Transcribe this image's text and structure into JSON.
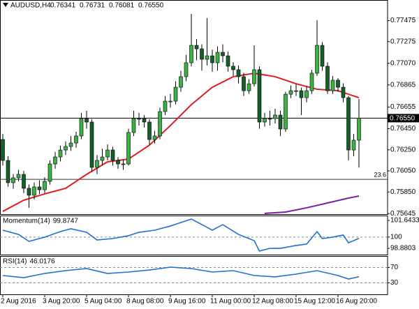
{
  "chart_data": [
    {
      "type": "candlestick",
      "title": "AUDUSD,H4",
      "header": [
        0.76341,
        0.76731,
        0.76081,
        {
          "value": 0.7655,
          "label": "0.76550"
        }
      ],
      "up_color": "#3cb043",
      "down_color": "#14602a",
      "categories": [
        "2 Aug 2016",
        null,
        null,
        null,
        null,
        null,
        null,
        null,
        "3 Aug 20:00",
        null,
        null,
        null,
        null,
        null,
        null,
        null,
        "5 Aug 04:00",
        null,
        null,
        null,
        null,
        null,
        null,
        null,
        "8 Aug 08:00",
        null,
        null,
        null,
        null,
        null,
        null,
        null,
        "9 Aug 16:00",
        null,
        null,
        null,
        null,
        null,
        null,
        null,
        "11 Aug 00:00",
        null,
        null,
        null,
        null,
        null,
        null,
        null,
        "12 Aug 08:00",
        null,
        null,
        null,
        null,
        null,
        null,
        null,
        "15 Aug 12:00",
        null,
        null,
        null,
        null,
        null,
        null,
        null,
        "16 Aug 20:00",
        null,
        null,
        null,
        null
      ],
      "open": [
        0.76348,
        0.76149,
        0.75938,
        0.75984,
        0.76017,
        0.75885,
        0.75819,
        0.75898,
        0.75871,
        0.75951,
        0.76116,
        0.76182,
        0.76248,
        0.76281,
        0.76314,
        0.76381,
        0.76546,
        0.76513,
        0.76083,
        0.76149,
        0.76182,
        0.76248,
        0.76149,
        0.76116,
        0.76116,
        0.76414,
        0.76546,
        0.76546,
        0.76513,
        0.76347,
        0.76381,
        0.76612,
        0.76711,
        0.76711,
        0.76843,
        0.76943,
        0.77075,
        0.7724,
        0.77207,
        0.77108,
        0.77141,
        0.77075,
        0.77174,
        0.77141,
        0.77042,
        0.77009,
        0.76943,
        0.7681,
        0.76876,
        0.77009,
        0.76513,
        0.76546,
        0.76546,
        0.76579,
        0.76447,
        0.76777,
        0.7681,
        0.7681,
        0.76744,
        0.7681,
        0.76976,
        0.7724,
        0.77042,
        0.7681,
        0.7691,
        0.76843,
        0.76744,
        0.76248,
        0.76341
      ],
      "high": [
        0.764,
        0.7619,
        0.7602,
        0.7606,
        0.7605,
        0.7592,
        0.7594,
        0.7596,
        0.7599,
        0.7615,
        0.7623,
        0.7629,
        0.7633,
        0.7638,
        0.7642,
        0.766,
        0.7662,
        0.7654,
        0.762,
        0.7626,
        0.763,
        0.7628,
        0.7618,
        0.7616,
        0.7645,
        0.7662,
        0.766,
        0.7658,
        0.7654,
        0.7643,
        0.7665,
        0.7676,
        0.7678,
        0.769,
        0.77,
        0.7715,
        0.77538,
        0.773,
        0.7725,
        0.775,
        0.772,
        0.7723,
        0.7725,
        0.7718,
        0.7708,
        0.7705,
        0.7698,
        0.7692,
        0.7724,
        0.7704,
        0.766,
        0.7662,
        0.7664,
        0.7662,
        0.768,
        0.7686,
        0.7687,
        0.7684,
        0.7685,
        0.7701,
        0.7748,
        0.7727,
        0.7708,
        0.7695,
        0.7693,
        0.7688,
        0.7676,
        0.764,
        0.76731
      ],
      "low": [
        0.761,
        0.759,
        0.7588,
        0.7595,
        0.7584,
        0.757,
        0.7578,
        0.7583,
        0.7584,
        0.7592,
        0.7607,
        0.7614,
        0.762,
        0.7624,
        0.7627,
        0.7635,
        0.7645,
        0.7604,
        0.7602,
        0.761,
        0.7615,
        0.761,
        0.7607,
        0.7606,
        0.761,
        0.7638,
        0.7648,
        0.7646,
        0.763,
        0.7631,
        0.7635,
        0.7658,
        0.7665,
        0.7668,
        0.768,
        0.769,
        0.7704,
        0.771,
        0.77,
        0.7705,
        0.7699,
        0.77,
        0.7708,
        0.7699,
        0.7695,
        0.7688,
        0.7676,
        0.7678,
        0.7685,
        0.7645,
        0.7647,
        0.7648,
        0.765,
        0.7638,
        0.7642,
        0.7674,
        0.7676,
        0.7658,
        0.767,
        0.7678,
        0.7695,
        0.77,
        0.7678,
        0.7678,
        0.768,
        0.767,
        0.7615,
        0.7619,
        0.76081
      ],
      "close": [
        0.76149,
        0.75938,
        0.75984,
        0.76017,
        0.75885,
        0.75819,
        0.75898,
        0.75871,
        0.75951,
        0.76116,
        0.76182,
        0.76248,
        0.76281,
        0.76314,
        0.76381,
        0.76546,
        0.76513,
        0.76083,
        0.76149,
        0.76182,
        0.76248,
        0.76149,
        0.76116,
        0.76116,
        0.76414,
        0.76546,
        0.76546,
        0.76513,
        0.76347,
        0.76381,
        0.76612,
        0.76711,
        0.76711,
        0.76843,
        0.76943,
        0.77075,
        0.7724,
        0.77207,
        0.77108,
        0.77141,
        0.77075,
        0.77174,
        0.77141,
        0.77042,
        0.77009,
        0.76943,
        0.7681,
        0.76876,
        0.77009,
        0.76513,
        0.76546,
        0.76546,
        0.76579,
        0.76447,
        0.76777,
        0.7681,
        0.7681,
        0.76744,
        0.7681,
        0.76976,
        0.7724,
        0.77042,
        0.7681,
        0.7691,
        0.76843,
        0.76744,
        0.76248,
        0.76341,
        0.7655
      ],
      "overlays": [
        {
          "color": "#e31a1c",
          "x": [
            0,
            4,
            8,
            12,
            16,
            20,
            24,
            28,
            32,
            36,
            40,
            44,
            48,
            52,
            56,
            60,
            64,
            68
          ],
          "values": [
            0.75666,
            0.75772,
            0.75832,
            0.75885,
            0.76017,
            0.76136,
            0.76162,
            0.76294,
            0.7648,
            0.76678,
            0.76843,
            0.76943,
            0.76976,
            0.76943,
            0.76876,
            0.76824,
            0.7681,
            0.76744
          ]
        },
        {
          "color": "#7b1fa2",
          "x": [
            50,
            54,
            58,
            62,
            66,
            68
          ],
          "values": [
            0.75647,
            0.7566,
            0.757,
            0.75746,
            0.75792,
            0.75812
          ]
        }
      ],
      "price_line": {
        "value": 0.7655,
        "label": "0.76550"
      },
      "fib_line": {
        "value": 0.7597,
        "label": "23.6"
      },
      "ylim": [
        0.7564,
        0.7767
      ],
      "yticks": [
        0.77475,
        0.77275,
        {
          "value": 0.7707,
          "label": "0.77070"
        },
        0.76865,
        0.76655,
        {
          "value": 0.7645,
          "label": "0.76450"
        },
        {
          "value": 0.7625,
          "label": "0.76250"
        },
        {
          "value": 0.7605,
          "label": "0.76050"
        },
        {
          "value": 0.7585,
          "label": "0.75850"
        },
        0.75645
      ]
    },
    {
      "type": "line",
      "title": "Momentum(14)",
      "last": 99.8747,
      "color": "#1f6fd1",
      "x": [
        0,
        3,
        5,
        8,
        11,
        13,
        16,
        18,
        21,
        24,
        26,
        29,
        32,
        34,
        36,
        37,
        40,
        42,
        45,
        48,
        49,
        51,
        53,
        56,
        58,
        60,
        61,
        63,
        65,
        66,
        68
      ],
      "values": [
        100.68,
        100.26,
        99.57,
        99.99,
        100.54,
        100.82,
        100.47,
        99.71,
        99.85,
        100.13,
        100.47,
        100.68,
        101.09,
        101.44,
        101.78,
        101.51,
        100.68,
        101.23,
        100.26,
        99.64,
        98.61,
        98.88,
        98.88,
        99.16,
        99.3,
        100.54,
        99.85,
        99.99,
        100.2,
        99.43,
        99.87
      ],
      "ylim": [
        98.26,
        102.13
      ],
      "yticks": [
        101.6433,
        100,
        98.8803
      ],
      "levels": [
        100
      ]
    },
    {
      "type": "line",
      "title": "RSI(14)",
      "last": 46.0176,
      "color": "#1f6fd1",
      "x": [
        0,
        4,
        8,
        12,
        16,
        20,
        24,
        28,
        32,
        36,
        40,
        44,
        48,
        52,
        56,
        60,
        64,
        66,
        68
      ],
      "values": [
        49.1,
        43.6,
        54.5,
        61.8,
        67.3,
        54.5,
        58.2,
        63.6,
        70.9,
        67.3,
        58.2,
        61.8,
        49.1,
        45.5,
        52.7,
        61.8,
        49.1,
        40,
        46
      ],
      "ylim": [
        0,
        100
      ],
      "yticks": [
        70,
        30
      ],
      "levels": [
        70,
        30
      ]
    }
  ]
}
